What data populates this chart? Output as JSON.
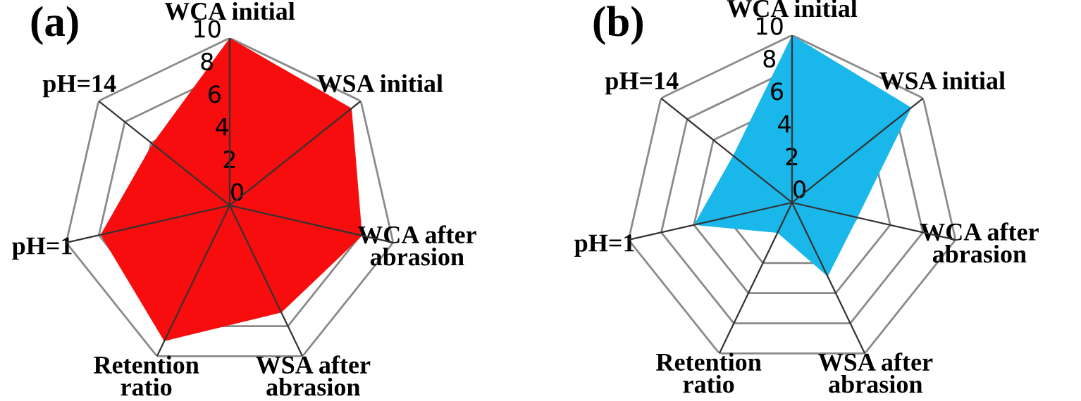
{
  "chart_data": [
    {
      "type": "radar",
      "title": "(a)",
      "categories": [
        "WCA initial",
        "WSA initial",
        "WCA after\nabrasion",
        "WSA after\nabrasion",
        "Retention\nratio",
        "pH=1",
        "pH=14"
      ],
      "ylim": [
        0,
        10
      ],
      "yticks": [
        0,
        2,
        4,
        6,
        8,
        10
      ],
      "grid": true,
      "series": [
        {
          "color": "#f70d0d",
          "values": [
            10,
            9.3,
            8.1,
            7.1,
            9,
            7.9,
            5.9
          ]
        }
      ]
    },
    {
      "type": "radar",
      "title": "(b)",
      "categories": [
        "WCA initial",
        "WSA initial",
        "WCA after\nabrasion",
        "WSA after\nabrasion",
        "Retention\nratio",
        "pH=1",
        "pH=14"
      ],
      "ylim": [
        0,
        10
      ],
      "yticks": [
        0,
        2,
        4,
        6,
        8,
        10
      ],
      "grid": true,
      "series": [
        {
          "color": "#1ab7ea",
          "values": [
            10,
            9.1,
            4,
            4.9,
            2,
            6,
            4.5
          ]
        }
      ]
    }
  ]
}
